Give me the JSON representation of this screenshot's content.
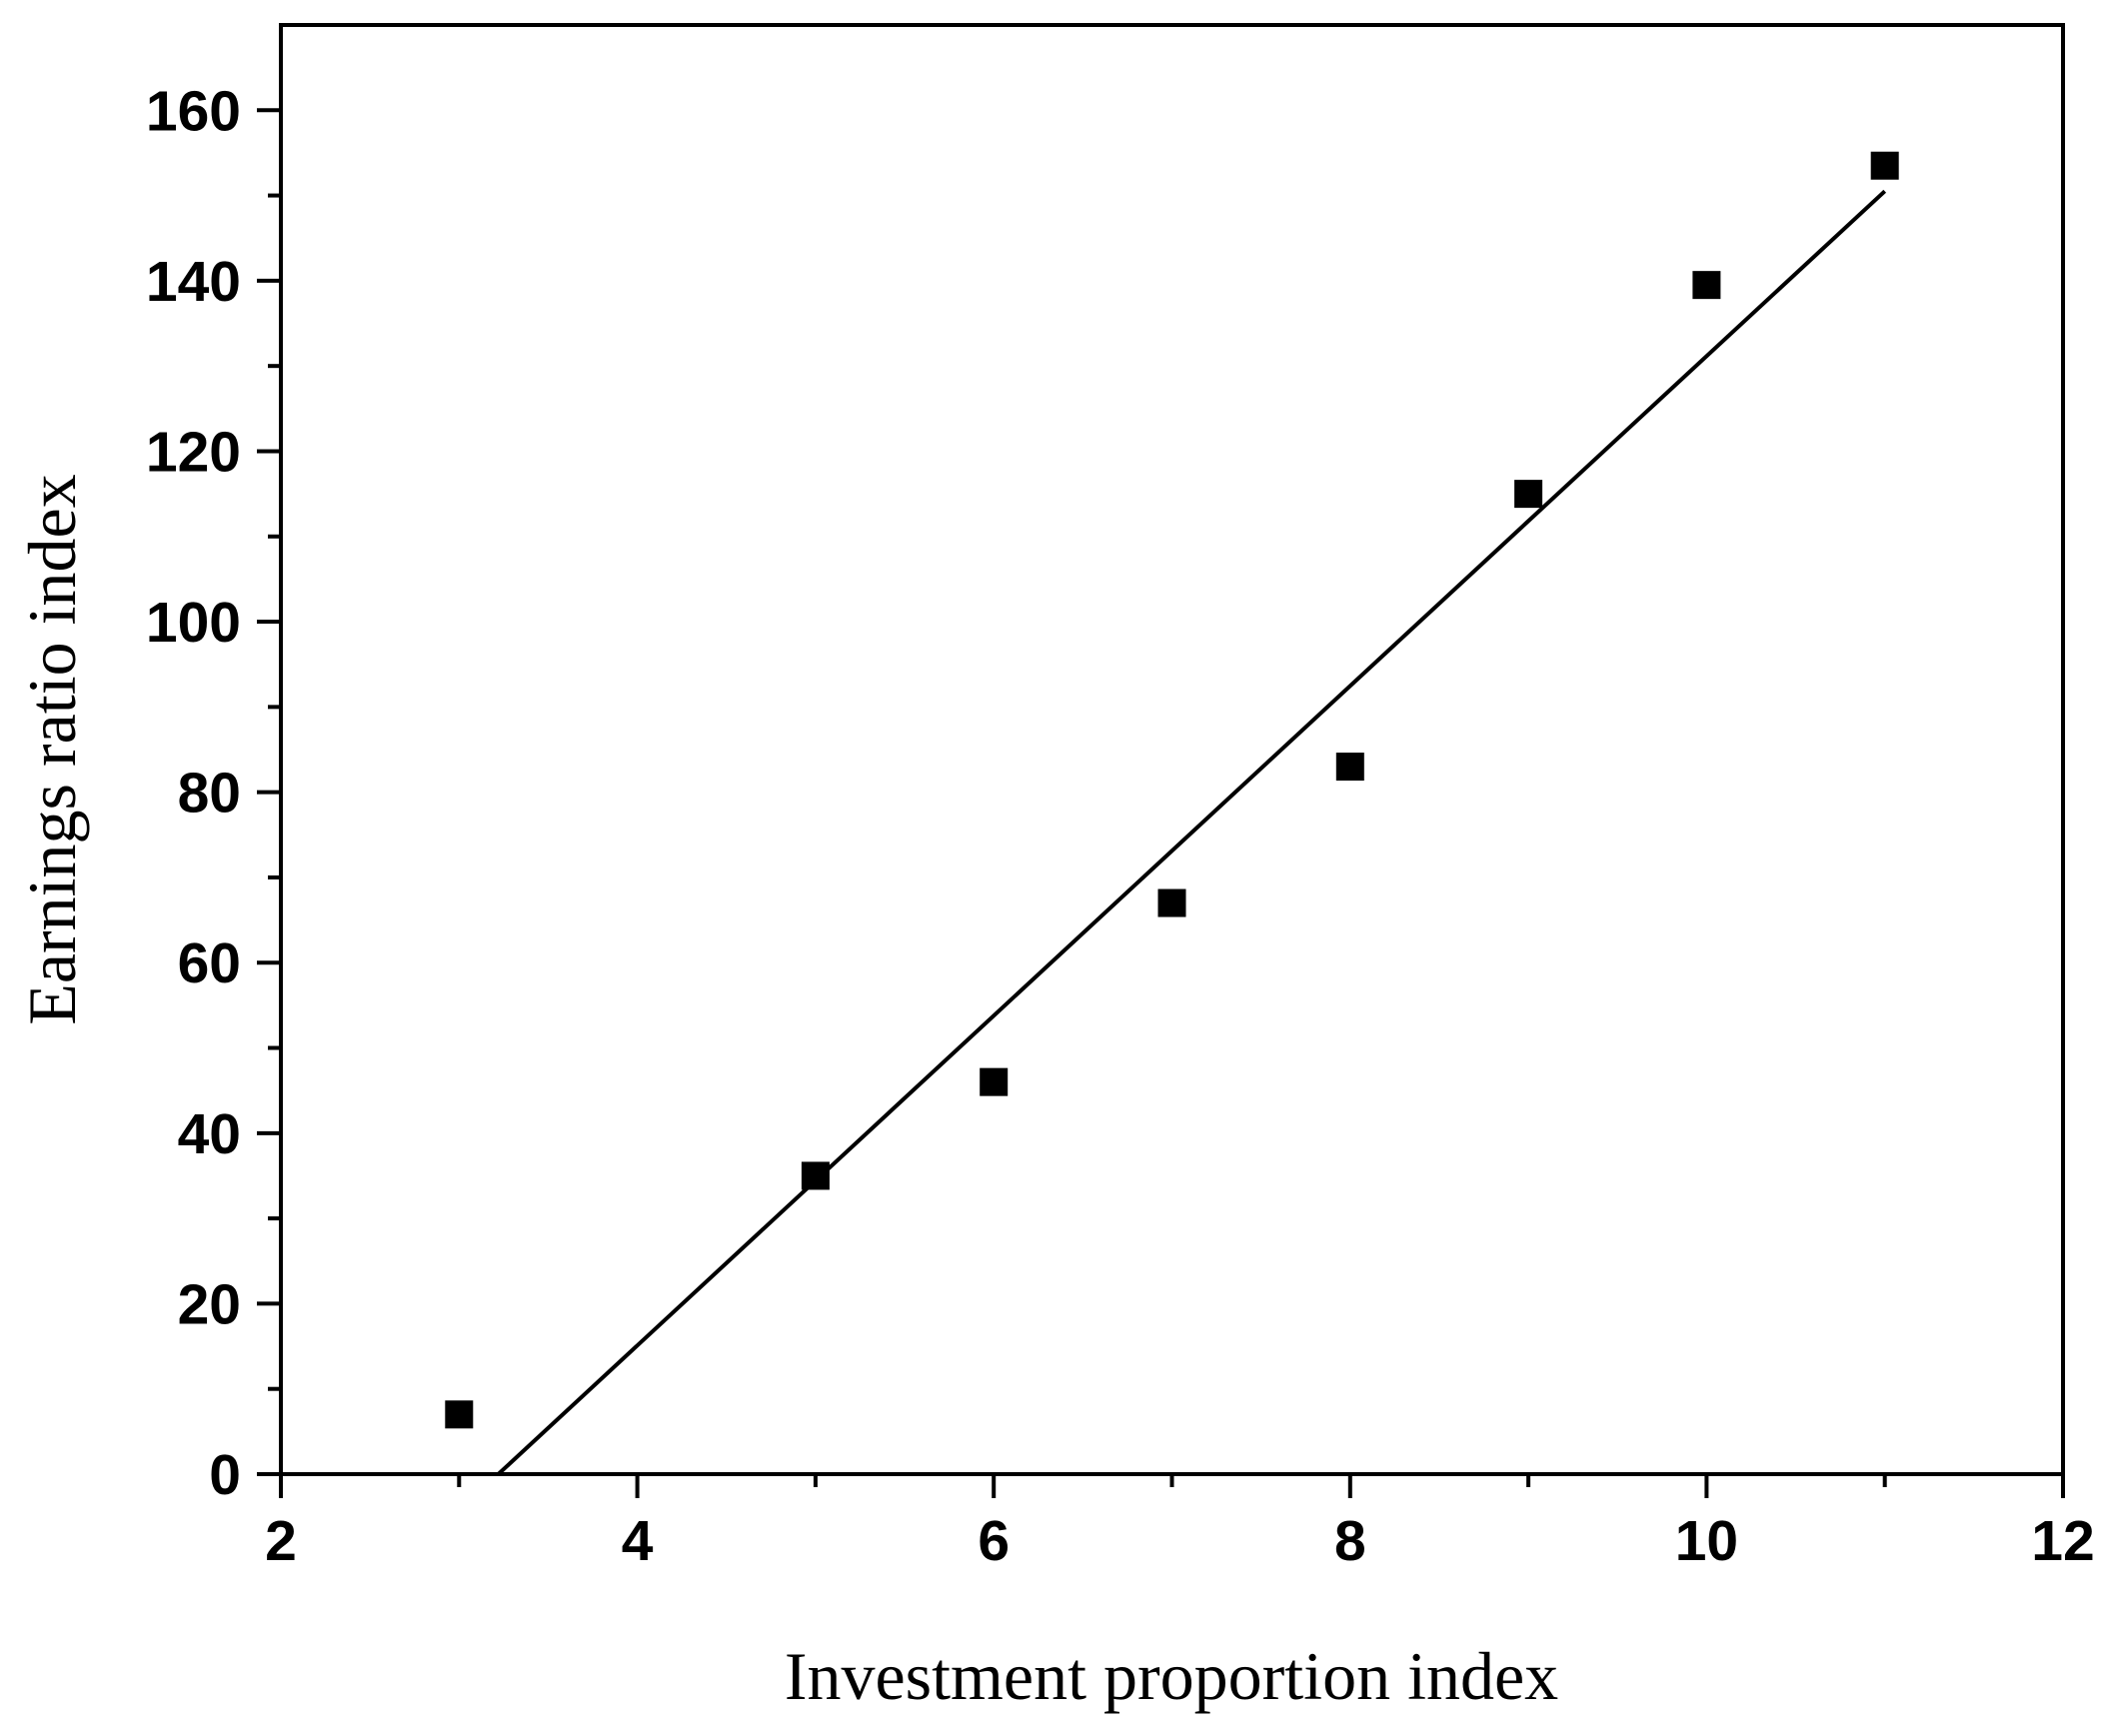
{
  "chart_data": {
    "type": "scatter",
    "title": "",
    "xlabel": "Investment proportion index",
    "ylabel": "Earnings ratio index",
    "xlim": [
      2,
      12
    ],
    "ylim": [
      0,
      170
    ],
    "x_ticks": [
      2,
      4,
      6,
      8,
      10,
      12
    ],
    "y_ticks": [
      0,
      20,
      40,
      60,
      80,
      100,
      120,
      140,
      160
    ],
    "x_tick_labels": [
      "2",
      "4",
      "6",
      "8",
      "10",
      "12"
    ],
    "y_tick_labels": [
      "0",
      "20",
      "40",
      "60",
      "80",
      "100",
      "120",
      "140",
      "160"
    ],
    "grid": false,
    "legend": "none",
    "series": [
      {
        "marker": "square",
        "color": "#000000",
        "points": [
          {
            "x": 3,
            "y": 7
          },
          {
            "x": 5,
            "y": 35
          },
          {
            "x": 6,
            "y": 46
          },
          {
            "x": 7,
            "y": 67
          },
          {
            "x": 8,
            "y": 83
          },
          {
            "x": 9,
            "y": 115
          },
          {
            "x": 10,
            "y": 139.5
          },
          {
            "x": 11,
            "y": 153.5
          }
        ]
      }
    ],
    "fit_line": {
      "color": "#000000",
      "start": {
        "x": 3.22,
        "y": 0
      },
      "end": {
        "x": 11,
        "y": 150.5
      }
    }
  }
}
